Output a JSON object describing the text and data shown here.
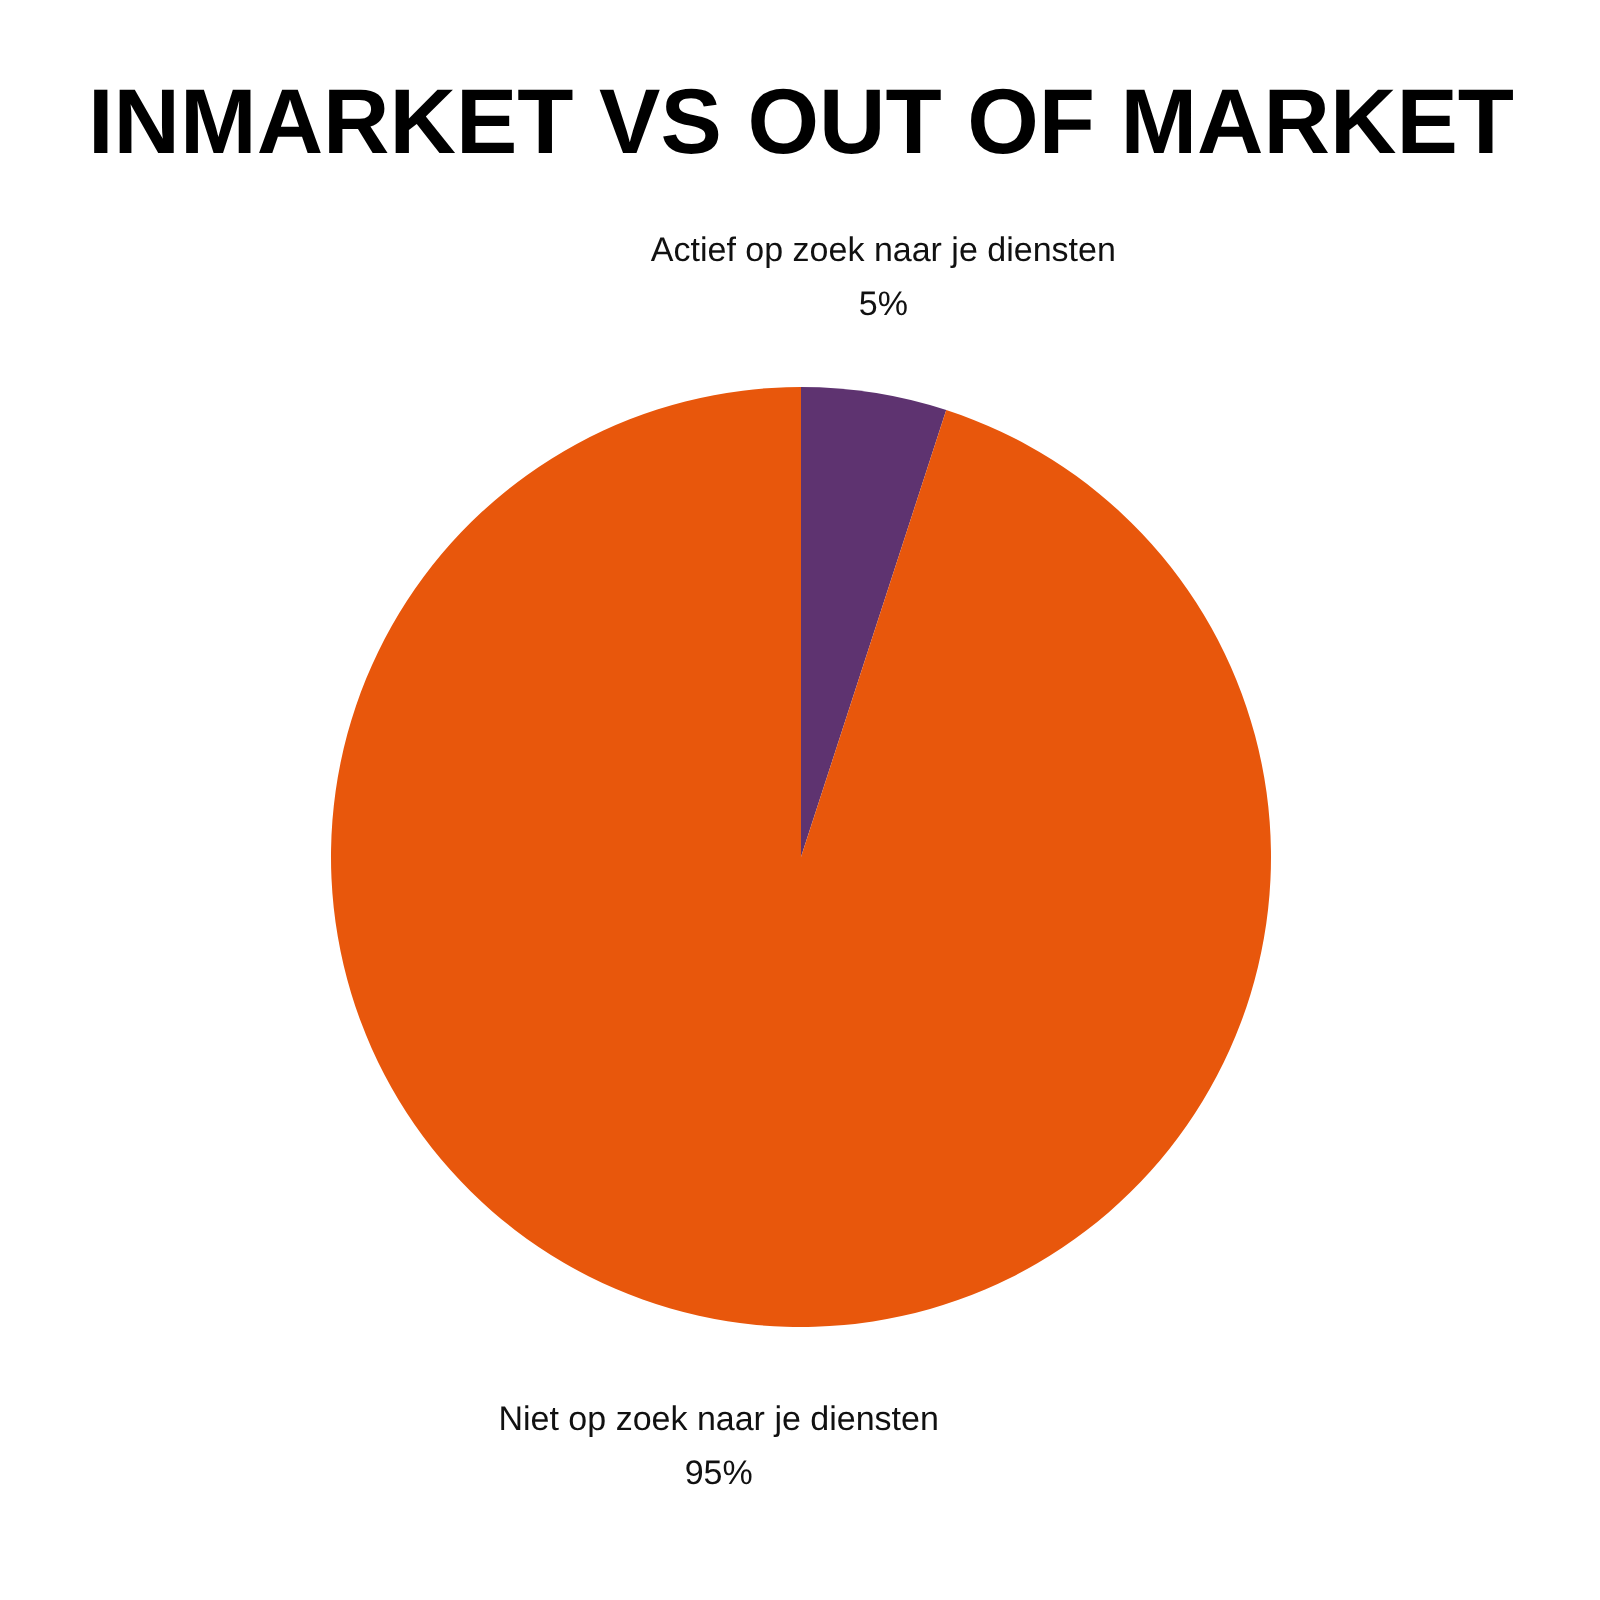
{
  "chart_data": {
    "type": "pie",
    "title": "INMARKET VS OUT OF MARKET",
    "categories": [
      "Actief op zoek naar je diensten",
      "Niet op zoek naar je diensten"
    ],
    "values": [
      5,
      95
    ],
    "colors": [
      "#5e3370",
      "#e8570c"
    ],
    "value_labels": [
      "5%",
      "95%"
    ]
  }
}
